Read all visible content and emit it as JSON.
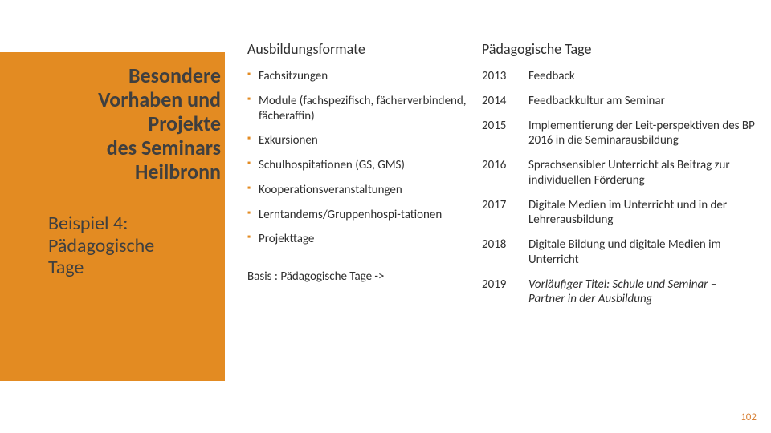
{
  "sidebar": {
    "bg_color": "#e38b22",
    "title_lines": [
      "Besondere",
      "Vorhaben und",
      "Projekte",
      "des Seminars",
      "Heilbronn"
    ],
    "subtitle_lines": [
      "Beispiel 4:",
      "Pädagogische",
      "Tage"
    ]
  },
  "left_col": {
    "header": "Ausbildungsformate",
    "items": [
      "Fachsitzungen",
      "Module (fachspezifisch, fächerverbindend, fächeraffin)",
      "Exkursionen",
      "Schulhospitationen (GS, GMS)",
      "Kooperationsveranstaltungen",
      "Lerntandems/Gruppenhospi-tationen",
      "Projekttage"
    ],
    "basis": "Basis : Pädagogische Tage ->"
  },
  "right_col": {
    "header": "Pädagogische Tage",
    "rows": [
      {
        "year": "2013",
        "desc": "Feedback",
        "italic": false
      },
      {
        "year": "2014",
        "desc": "Feedbackkultur am Seminar",
        "italic": false
      },
      {
        "year": "2015",
        "desc": "Implementierung der Leit-perspektiven des BP 2016 in die Seminarausbildung",
        "italic": false
      },
      {
        "year": "2016",
        "desc": "Sprachsensibler Unterricht als Beitrag zur individuellen Förderung",
        "italic": false
      },
      {
        "year": "2017",
        "desc": "Digitale Medien im Unterricht und in der Lehrerausbildung",
        "italic": false
      },
      {
        "year": "2018",
        "desc": "Digitale Bildung und digitale Medien im Unterricht",
        "italic": false
      },
      {
        "year": "2019",
        "desc": "Vorläufiger Titel: Schule und Seminar   – Partner in der Ausbildung",
        "italic": true
      }
    ]
  },
  "page_number": "102",
  "style": {
    "bullet_color": "#e38b22",
    "text_color": "#2f2f2f",
    "title_color": "#3f3f3f",
    "pagenum_color": "#d9843b",
    "header_fontsize": 18,
    "body_fontsize": 15,
    "title_fontsize": 26,
    "subtitle_fontsize": 24
  }
}
